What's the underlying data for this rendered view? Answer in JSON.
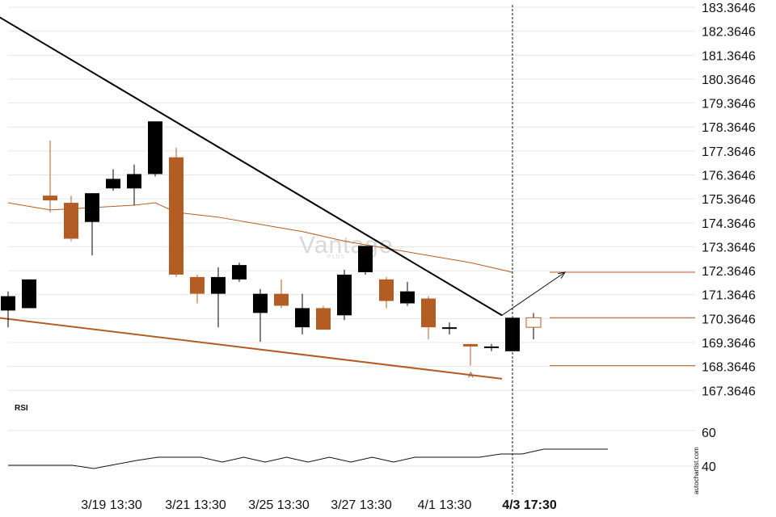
{
  "chart_data": {
    "type": "candlestick",
    "y_ticks": [
      "183.3646",
      "182.3646",
      "181.3646",
      "180.3646",
      "179.3646",
      "178.3646",
      "177.3646",
      "176.3646",
      "175.3646",
      "174.3646",
      "173.3646",
      "172.3646",
      "171.3646",
      "170.3646",
      "169.3646",
      "168.3646",
      "167.3646"
    ],
    "y_range": [
      166.8,
      183.4
    ],
    "x_ticks": [
      "3/19 13:30",
      "3/21 13:30",
      "3/25 13:30",
      "3/27 13:30",
      "4/1 13:30",
      "4/3 17:30"
    ],
    "x_ticks_bold": [
      "4/3 17:30"
    ],
    "colors": {
      "up": "#000000",
      "down": "#b35d24",
      "grid": "#e6e6e6",
      "resistance": "#000000",
      "support": "#b35d24"
    },
    "candles": [
      {
        "o": 170.7,
        "h": 171.5,
        "l": 170.0,
        "c": 171.3
      },
      {
        "o": 170.8,
        "h": 172.0,
        "l": 170.8,
        "c": 172.0
      },
      {
        "o": 175.5,
        "h": 177.8,
        "l": 174.8,
        "c": 175.3
      },
      {
        "o": 175.2,
        "h": 175.5,
        "l": 173.6,
        "c": 173.7
      },
      {
        "o": 174.4,
        "h": 175.6,
        "l": 173.0,
        "c": 175.6
      },
      {
        "o": 175.8,
        "h": 176.6,
        "l": 175.7,
        "c": 176.2
      },
      {
        "o": 175.8,
        "h": 176.8,
        "l": 175.1,
        "c": 176.4
      },
      {
        "o": 176.4,
        "h": 178.6,
        "l": 176.3,
        "c": 178.6
      },
      {
        "o": 177.1,
        "h": 177.5,
        "l": 172.1,
        "c": 172.2
      },
      {
        "o": 172.1,
        "h": 172.2,
        "l": 171.0,
        "c": 171.4
      },
      {
        "o": 171.4,
        "h": 172.5,
        "l": 170.0,
        "c": 172.1
      },
      {
        "o": 172.0,
        "h": 172.7,
        "l": 171.9,
        "c": 172.6
      },
      {
        "o": 170.6,
        "h": 171.6,
        "l": 169.4,
        "c": 171.4
      },
      {
        "o": 171.4,
        "h": 172.0,
        "l": 170.8,
        "c": 170.9
      },
      {
        "o": 170.0,
        "h": 171.4,
        "l": 169.7,
        "c": 170.8
      },
      {
        "o": 170.8,
        "h": 170.9,
        "l": 169.9,
        "c": 169.9
      },
      {
        "o": 170.5,
        "h": 172.4,
        "l": 170.3,
        "c": 172.2
      },
      {
        "o": 172.3,
        "h": 173.4,
        "l": 172.2,
        "c": 173.4
      },
      {
        "o": 172.0,
        "h": 172.1,
        "l": 170.8,
        "c": 171.1
      },
      {
        "o": 171.0,
        "h": 171.9,
        "l": 170.9,
        "c": 171.5
      },
      {
        "o": 171.2,
        "h": 171.3,
        "l": 169.5,
        "c": 170.0
      },
      {
        "o": 170.0,
        "h": 170.2,
        "l": 169.7,
        "c": 170.0
      },
      {
        "o": 169.3,
        "h": 169.3,
        "l": 168.4,
        "c": 169.2
      },
      {
        "o": 169.2,
        "h": 169.3,
        "l": 169.0,
        "c": 169.2
      },
      {
        "o": 169.0,
        "h": 170.4,
        "l": 169.0,
        "c": 170.4
      },
      {
        "o": 170.0,
        "h": 170.6,
        "l": 169.5,
        "c": 170.4
      }
    ],
    "candle_times": [
      "",
      "3/19 13:30",
      "",
      "",
      "",
      "3/21 13:30",
      "",
      "",
      "",
      "",
      "3/25 13:30",
      "",
      "",
      "",
      "3/27 13:30",
      "",
      "",
      "",
      "4/1 13:30",
      "",
      "",
      "4/3 17:30",
      "",
      "",
      "",
      ""
    ],
    "moving_average": [
      {
        "x": 0,
        "y": 175.2
      },
      {
        "x": 2,
        "y": 174.9
      },
      {
        "x": 4,
        "y": 175.0
      },
      {
        "x": 6,
        "y": 175.1
      },
      {
        "x": 7,
        "y": 175.2
      },
      {
        "x": 8,
        "y": 174.8
      },
      {
        "x": 10,
        "y": 174.6
      },
      {
        "x": 12,
        "y": 174.3
      },
      {
        "x": 14,
        "y": 174.0
      },
      {
        "x": 16,
        "y": 173.6
      },
      {
        "x": 18,
        "y": 173.3
      },
      {
        "x": 20,
        "y": 173.0
      },
      {
        "x": 22,
        "y": 172.7
      },
      {
        "x": 24,
        "y": 172.3
      }
    ],
    "resistance_line": {
      "from": {
        "x": -0.5,
        "y": 183.0
      },
      "to": {
        "x": 23.5,
        "y": 170.5
      }
    },
    "support_line": {
      "from": {
        "x": -0.5,
        "y": 170.4
      },
      "to": {
        "x": 23.5,
        "y": 167.85
      }
    },
    "projection_arrow": {
      "from": {
        "x": 23.5,
        "y": 170.5
      },
      "to": {
        "x": 26.5,
        "y": 172.3
      }
    },
    "levels": [
      172.3,
      170.4,
      168.4
    ],
    "marker": {
      "x": 22,
      "label": "A"
    },
    "rsi": {
      "label": "RSI",
      "ticks": [
        "60",
        "40"
      ],
      "range": [
        30,
        70
      ],
      "values": [
        [
          0,
          42
        ],
        [
          3,
          42
        ],
        [
          4,
          40
        ],
        [
          6,
          45
        ],
        [
          7,
          47
        ],
        [
          9,
          47
        ],
        [
          10,
          44
        ],
        [
          11,
          47
        ],
        [
          12,
          44
        ],
        [
          13,
          47
        ],
        [
          14,
          44
        ],
        [
          15,
          47
        ],
        [
          16,
          44
        ],
        [
          17,
          47
        ],
        [
          18,
          44
        ],
        [
          19,
          47
        ],
        [
          22,
          47
        ],
        [
          23,
          49
        ],
        [
          24,
          49
        ],
        [
          25,
          52
        ],
        [
          28,
          52
        ]
      ]
    },
    "watermark": "Vantage",
    "watermark_sub": "PLUS",
    "side_label": "autochartist.com"
  }
}
